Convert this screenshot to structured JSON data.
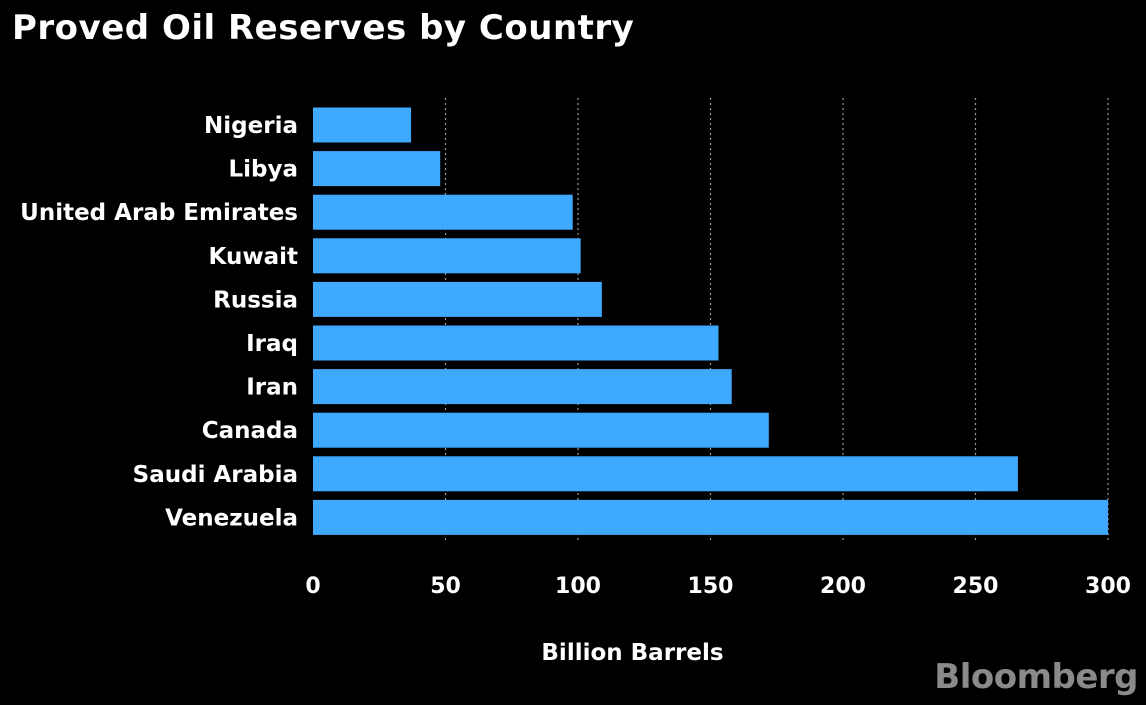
{
  "brand": "Bloomberg",
  "chart_data": {
    "type": "bar",
    "orientation": "horizontal",
    "title": "Proved Oil Reserves by Country",
    "xlabel": "Billion Barrels",
    "ylabel": "",
    "categories": [
      "Nigeria",
      "Libya",
      "United Arab Emirates",
      "Kuwait",
      "Russia",
      "Iraq",
      "Iran",
      "Canada",
      "Saudi Arabia",
      "Venezuela"
    ],
    "values": [
      37,
      48,
      98,
      101,
      109,
      153,
      158,
      172,
      266,
      301
    ],
    "xlim": [
      0,
      300
    ],
    "xticks": [
      0,
      50,
      100,
      150,
      200,
      250,
      300
    ],
    "grid": true,
    "bar_color": "#3fa9ff",
    "background": "#000000"
  }
}
